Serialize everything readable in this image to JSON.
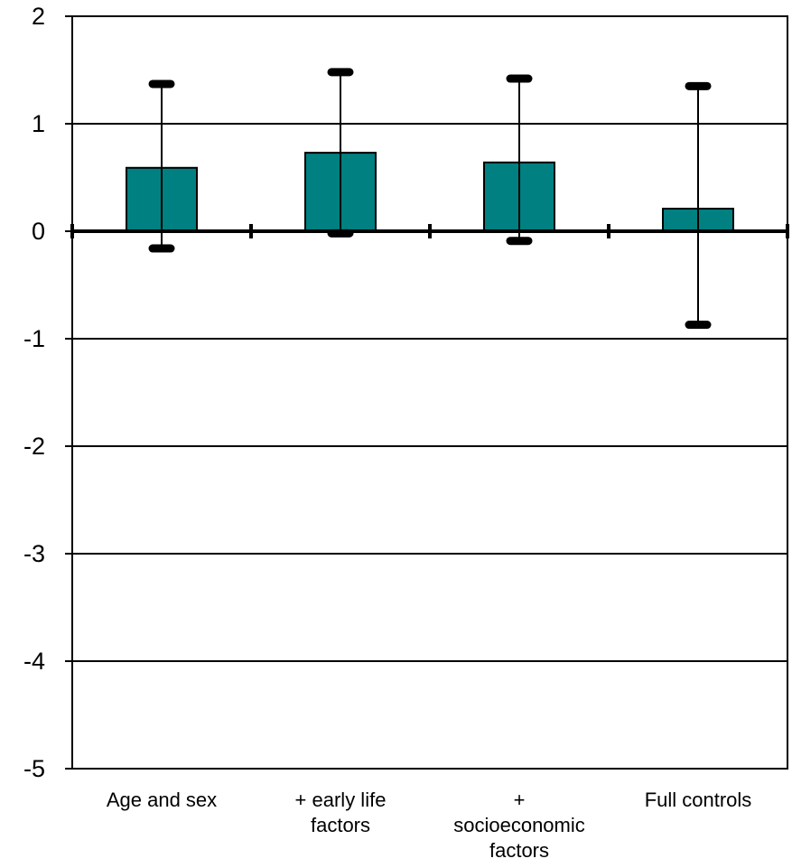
{
  "chart_data": {
    "type": "bar",
    "categories": [
      [
        "Age and sex"
      ],
      [
        "+ early life",
        "factors"
      ],
      [
        "+",
        "socioeconomic",
        "factors"
      ],
      [
        "Full controls"
      ]
    ],
    "values": [
      0.59,
      0.73,
      0.64,
      0.21
    ],
    "error_upper": [
      1.37,
      1.48,
      1.42,
      1.35
    ],
    "error_lower": [
      -0.16,
      -0.02,
      -0.09,
      -0.87
    ],
    "ylim": [
      -5,
      2
    ],
    "yticks": [
      2,
      1,
      0,
      -1,
      -2,
      -3,
      -4,
      -5
    ],
    "ytick_labels": [
      "2",
      "1",
      "0",
      "-1",
      "-2",
      "-3",
      "-4",
      "-5"
    ],
    "grid": true,
    "title": "",
    "xlabel": "",
    "ylabel": "",
    "bar_color": "#008080"
  }
}
